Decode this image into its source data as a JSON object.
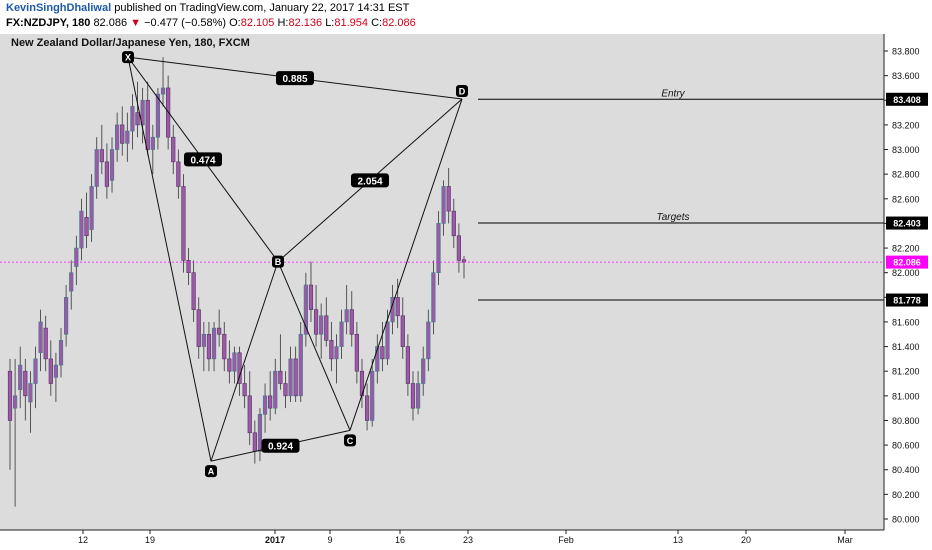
{
  "header": {
    "author": "KevinSinghDhaliwal",
    "published": "published on TradingView.com, January 22, 2017 14:31 EST",
    "symbol": "FX:NZDJPY, 180",
    "last": "82.086",
    "change": "−0.477 (−0.58%)",
    "o_label": "O:",
    "o_value": "82.105",
    "h_label": "H:",
    "h_value": "82.136",
    "l_label": "L:",
    "l_value": "81.954",
    "c_label": "C:",
    "c_value": "82.086"
  },
  "legend": "New Zealand Dollar/Japanese Yen, 180, FXCM",
  "colors": {
    "plot_bg": "#dcdcdc",
    "candle": "#9b5aa5",
    "candle_up_edge": "#3a7f8c",
    "current_price_line": "#ff00ff",
    "current_price_badge": "#ff00ff",
    "level_badge": "#000000"
  },
  "chart_data": {
    "type": "candlestick",
    "y_axis": {
      "min": 79.9,
      "max": 83.95,
      "ticks": [
        "80.000",
        "80.200",
        "80.400",
        "80.600",
        "80.800",
        "81.000",
        "81.200",
        "81.400",
        "81.600",
        "81.800",
        "82.000",
        "82.200",
        "82.400",
        "82.600",
        "82.800",
        "83.000",
        "83.200",
        "83.400",
        "83.600",
        "83.800"
      ],
      "tick_values": [
        80.0,
        80.2,
        80.4,
        80.6,
        80.8,
        81.0,
        81.2,
        81.4,
        81.6,
        81.8,
        82.0,
        82.2,
        82.4,
        82.6,
        82.8,
        83.0,
        83.2,
        83.4,
        83.6,
        83.8
      ]
    },
    "x_axis": {
      "labels": [
        "12",
        "19",
        "2017",
        "9",
        "16",
        "23",
        "Feb",
        "13",
        "20",
        "Mar"
      ],
      "bold": [
        "2017"
      ]
    },
    "current_price": 82.086,
    "pattern_points": [
      {
        "label": "X",
        "price": 83.75
      },
      {
        "label": "A",
        "price": 80.47
      },
      {
        "label": "B",
        "price": 82.09
      },
      {
        "label": "C",
        "price": 80.72
      },
      {
        "label": "D",
        "price": 83.41
      }
    ],
    "ratios": [
      "0.885",
      "0.474",
      "2.054",
      "0.924"
    ],
    "levels": [
      {
        "label": "Entry",
        "price": 83.408,
        "badge": "83.408"
      },
      {
        "label": "Targets",
        "price": 82.403,
        "badge": "82.403"
      },
      {
        "label": "",
        "price": 81.778,
        "badge": "81.778"
      }
    ],
    "current_badge": "82.086",
    "candles": [
      {
        "o": 81.2,
        "h": 81.3,
        "l": 80.4,
        "c": 80.8
      },
      {
        "o": 80.9,
        "h": 81.3,
        "l": 80.1,
        "c": 81.0
      },
      {
        "o": 81.05,
        "h": 81.4,
        "l": 80.9,
        "c": 81.25
      },
      {
        "o": 81.2,
        "h": 81.3,
        "l": 80.8,
        "c": 81.0
      },
      {
        "o": 80.95,
        "h": 81.2,
        "l": 80.7,
        "c": 81.1
      },
      {
        "o": 81.1,
        "h": 81.4,
        "l": 80.9,
        "c": 81.3
      },
      {
        "o": 81.35,
        "h": 81.7,
        "l": 81.2,
        "c": 81.6
      },
      {
        "o": 81.55,
        "h": 81.65,
        "l": 81.2,
        "c": 81.3
      },
      {
        "o": 81.3,
        "h": 81.45,
        "l": 81.0,
        "c": 81.1
      },
      {
        "o": 81.15,
        "h": 81.35,
        "l": 80.95,
        "c": 81.25
      },
      {
        "o": 81.25,
        "h": 81.55,
        "l": 81.15,
        "c": 81.45
      },
      {
        "o": 81.5,
        "h": 81.9,
        "l": 81.4,
        "c": 81.8
      },
      {
        "o": 81.85,
        "h": 82.1,
        "l": 81.7,
        "c": 82.0
      },
      {
        "o": 82.05,
        "h": 82.3,
        "l": 81.9,
        "c": 82.2
      },
      {
        "o": 82.2,
        "h": 82.6,
        "l": 82.1,
        "c": 82.5
      },
      {
        "o": 82.45,
        "h": 82.65,
        "l": 82.2,
        "c": 82.3
      },
      {
        "o": 82.35,
        "h": 82.8,
        "l": 82.25,
        "c": 82.7
      },
      {
        "o": 82.7,
        "h": 83.1,
        "l": 82.6,
        "c": 83.0
      },
      {
        "o": 83.0,
        "h": 83.2,
        "l": 82.8,
        "c": 82.9
      },
      {
        "o": 82.9,
        "h": 83.05,
        "l": 82.6,
        "c": 82.7
      },
      {
        "o": 82.75,
        "h": 83.1,
        "l": 82.65,
        "c": 83.0
      },
      {
        "o": 83.0,
        "h": 83.3,
        "l": 82.9,
        "c": 83.2
      },
      {
        "o": 83.2,
        "h": 83.35,
        "l": 82.95,
        "c": 83.05
      },
      {
        "o": 83.05,
        "h": 83.3,
        "l": 82.9,
        "c": 83.15
      },
      {
        "o": 83.15,
        "h": 83.45,
        "l": 83.0,
        "c": 83.35
      },
      {
        "o": 83.3,
        "h": 83.55,
        "l": 83.1,
        "c": 83.2
      },
      {
        "o": 83.2,
        "h": 83.5,
        "l": 83.05,
        "c": 83.4
      },
      {
        "o": 83.4,
        "h": 83.55,
        "l": 82.95,
        "c": 83.0
      },
      {
        "o": 83.0,
        "h": 83.2,
        "l": 82.8,
        "c": 83.1
      },
      {
        "o": 83.1,
        "h": 83.5,
        "l": 83.0,
        "c": 83.45
      },
      {
        "o": 83.45,
        "h": 83.75,
        "l": 83.35,
        "c": 83.5
      },
      {
        "o": 83.5,
        "h": 83.6,
        "l": 83.0,
        "c": 83.1
      },
      {
        "o": 83.1,
        "h": 83.2,
        "l": 82.8,
        "c": 82.9
      },
      {
        "o": 82.9,
        "h": 83.0,
        "l": 82.6,
        "c": 82.7
      },
      {
        "o": 82.7,
        "h": 82.8,
        "l": 82.0,
        "c": 82.1
      },
      {
        "o": 82.1,
        "h": 82.2,
        "l": 81.9,
        "c": 82.0
      },
      {
        "o": 82.0,
        "h": 82.1,
        "l": 81.6,
        "c": 81.7
      },
      {
        "o": 81.7,
        "h": 81.8,
        "l": 81.3,
        "c": 81.4
      },
      {
        "o": 81.4,
        "h": 81.6,
        "l": 81.2,
        "c": 81.5
      },
      {
        "o": 81.5,
        "h": 81.6,
        "l": 81.2,
        "c": 81.3
      },
      {
        "o": 81.3,
        "h": 81.6,
        "l": 81.2,
        "c": 81.55
      },
      {
        "o": 81.55,
        "h": 81.7,
        "l": 81.4,
        "c": 81.5
      },
      {
        "o": 81.5,
        "h": 81.6,
        "l": 81.2,
        "c": 81.3
      },
      {
        "o": 81.3,
        "h": 81.45,
        "l": 81.1,
        "c": 81.2
      },
      {
        "o": 81.2,
        "h": 81.4,
        "l": 81.1,
        "c": 81.35
      },
      {
        "o": 81.35,
        "h": 81.4,
        "l": 81.0,
        "c": 81.1
      },
      {
        "o": 81.1,
        "h": 81.25,
        "l": 80.9,
        "c": 81.0
      },
      {
        "o": 81.0,
        "h": 81.2,
        "l": 80.6,
        "c": 80.7
      },
      {
        "o": 80.7,
        "h": 80.8,
        "l": 80.45,
        "c": 80.55
      },
      {
        "o": 80.55,
        "h": 80.9,
        "l": 80.47,
        "c": 80.85
      },
      {
        "o": 80.85,
        "h": 81.1,
        "l": 80.7,
        "c": 81.0
      },
      {
        "o": 81.0,
        "h": 81.2,
        "l": 80.8,
        "c": 80.9
      },
      {
        "o": 80.9,
        "h": 81.3,
        "l": 80.85,
        "c": 81.2
      },
      {
        "o": 81.2,
        "h": 81.5,
        "l": 81.05,
        "c": 81.1
      },
      {
        "o": 81.1,
        "h": 81.2,
        "l": 80.9,
        "c": 81.0
      },
      {
        "o": 81.0,
        "h": 81.4,
        "l": 80.95,
        "c": 81.3
      },
      {
        "o": 81.3,
        "h": 81.4,
        "l": 80.95,
        "c": 81.0
      },
      {
        "o": 81.0,
        "h": 81.6,
        "l": 80.95,
        "c": 81.5
      },
      {
        "o": 81.5,
        "h": 82.0,
        "l": 81.4,
        "c": 81.9
      },
      {
        "o": 81.9,
        "h": 82.09,
        "l": 81.6,
        "c": 81.7
      },
      {
        "o": 81.7,
        "h": 81.9,
        "l": 81.4,
        "c": 81.5
      },
      {
        "o": 81.5,
        "h": 81.75,
        "l": 81.3,
        "c": 81.65
      },
      {
        "o": 81.65,
        "h": 81.8,
        "l": 81.4,
        "c": 81.45
      },
      {
        "o": 81.45,
        "h": 81.6,
        "l": 81.2,
        "c": 81.3
      },
      {
        "o": 81.3,
        "h": 81.5,
        "l": 81.1,
        "c": 81.4
      },
      {
        "o": 81.4,
        "h": 81.7,
        "l": 81.3,
        "c": 81.6
      },
      {
        "o": 81.6,
        "h": 81.9,
        "l": 81.5,
        "c": 81.7
      },
      {
        "o": 81.7,
        "h": 81.85,
        "l": 81.4,
        "c": 81.5
      },
      {
        "o": 81.5,
        "h": 81.6,
        "l": 81.1,
        "c": 81.2
      },
      {
        "o": 81.2,
        "h": 81.3,
        "l": 80.9,
        "c": 81.0
      },
      {
        "o": 81.0,
        "h": 81.1,
        "l": 80.72,
        "c": 80.8
      },
      {
        "o": 80.8,
        "h": 81.3,
        "l": 80.75,
        "c": 81.2
      },
      {
        "o": 81.2,
        "h": 81.5,
        "l": 81.1,
        "c": 81.4
      },
      {
        "o": 81.4,
        "h": 81.6,
        "l": 81.2,
        "c": 81.3
      },
      {
        "o": 81.3,
        "h": 81.7,
        "l": 81.25,
        "c": 81.6
      },
      {
        "o": 81.6,
        "h": 81.9,
        "l": 81.5,
        "c": 81.8
      },
      {
        "o": 81.8,
        "h": 81.95,
        "l": 81.55,
        "c": 81.65
      },
      {
        "o": 81.65,
        "h": 81.8,
        "l": 81.3,
        "c": 81.4
      },
      {
        "o": 81.4,
        "h": 81.5,
        "l": 81.0,
        "c": 81.1
      },
      {
        "o": 81.1,
        "h": 81.2,
        "l": 80.8,
        "c": 80.9
      },
      {
        "o": 80.9,
        "h": 81.2,
        "l": 80.85,
        "c": 81.1
      },
      {
        "o": 81.1,
        "h": 81.4,
        "l": 81.0,
        "c": 81.3
      },
      {
        "o": 81.3,
        "h": 81.7,
        "l": 81.2,
        "c": 81.6
      },
      {
        "o": 81.6,
        "h": 82.1,
        "l": 81.5,
        "c": 82.0
      },
      {
        "o": 82.0,
        "h": 82.5,
        "l": 81.9,
        "c": 82.4
      },
      {
        "o": 82.4,
        "h": 82.75,
        "l": 82.3,
        "c": 82.7
      },
      {
        "o": 82.7,
        "h": 82.85,
        "l": 82.4,
        "c": 82.5
      },
      {
        "o": 82.5,
        "h": 82.6,
        "l": 82.2,
        "c": 82.3
      },
      {
        "o": 82.3,
        "h": 82.4,
        "l": 82.0,
        "c": 82.1
      },
      {
        "o": 82.105,
        "h": 82.136,
        "l": 81.954,
        "c": 82.086
      }
    ]
  }
}
